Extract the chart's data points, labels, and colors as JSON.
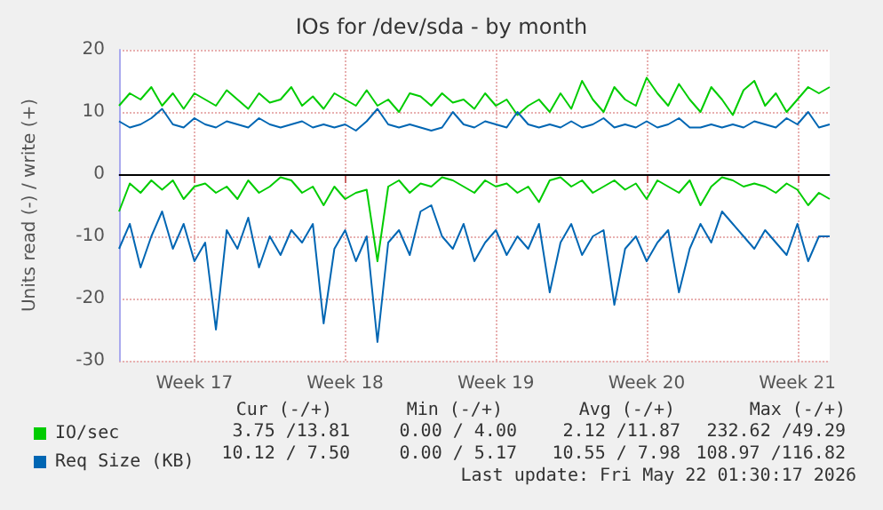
{
  "chart_data": {
    "type": "line",
    "title": "IOs for /dev/sda - by month",
    "ylabel": "Units read (-) / write (+)",
    "categories": [
      null,
      null,
      null,
      null,
      null,
      null,
      null,
      "Week 17",
      null,
      null,
      null,
      null,
      null,
      null,
      null,
      null,
      null,
      null,
      null,
      null,
      null,
      "Week 18",
      null,
      null,
      null,
      null,
      null,
      null,
      null,
      null,
      null,
      null,
      null,
      null,
      null,
      "Week 19",
      null,
      null,
      null,
      null,
      null,
      null,
      null,
      null,
      null,
      null,
      null,
      null,
      null,
      "Week 20",
      null,
      null,
      null,
      null,
      null,
      null,
      null,
      null,
      null,
      null,
      null,
      null,
      null,
      "Week 21",
      null,
      null,
      null
    ],
    "ylim": [
      -30,
      20
    ],
    "yticks": [
      -30,
      -20,
      -10,
      0,
      10,
      20
    ],
    "grid": true,
    "legend": "bottom",
    "marker": "none",
    "ref_lines": [
      {
        "axis": "y",
        "value": 0,
        "color": "#000000"
      }
    ],
    "series": [
      {
        "name": "IO/sec",
        "color": "#00cc00",
        "values": [
          11,
          13,
          12,
          14,
          11,
          13,
          10.5,
          13,
          12,
          11,
          13.5,
          12,
          10.5,
          13,
          11.5,
          12,
          14,
          11,
          12.5,
          10.5,
          13,
          12,
          11,
          13.5,
          11,
          12,
          10,
          13,
          12.5,
          11,
          13,
          11.5,
          12,
          10.5,
          13,
          11,
          12,
          9.5,
          11,
          12,
          10,
          13,
          10.5,
          15,
          12,
          10,
          14,
          12,
          11,
          15.5,
          13,
          11,
          14.5,
          12,
          10,
          14,
          12,
          9.5,
          13.5,
          15,
          11,
          13,
          10,
          12,
          14,
          13,
          14
        ]
      },
      {
        "name": "Req Size (KB)",
        "color": "#0066b3",
        "values": [
          8.5,
          7.5,
          8,
          9,
          10.5,
          8,
          7.5,
          9,
          8,
          7.5,
          8.5,
          8,
          7.5,
          9,
          8,
          7.5,
          8,
          8.5,
          7.5,
          8,
          7.5,
          8,
          7,
          8.5,
          10.5,
          8,
          7.5,
          8,
          7.5,
          7,
          7.5,
          10,
          8,
          7.5,
          8.5,
          8,
          7.5,
          10,
          8,
          7.5,
          8,
          7.5,
          8.5,
          7.5,
          8,
          9,
          7.5,
          8,
          7.5,
          8.5,
          7.5,
          8,
          9,
          7.5,
          7.5,
          8,
          7.5,
          8,
          7.5,
          8.5,
          8,
          7.5,
          9,
          8,
          10,
          7.5,
          8
        ]
      },
      {
        "color": "#00cc00",
        "values": [
          -6,
          -1.5,
          -3,
          -1,
          -2.5,
          -1,
          -4,
          -2,
          -1.5,
          -3,
          -2,
          -4,
          -1,
          -3,
          -2,
          -0.5,
          -1,
          -3,
          -2,
          -5,
          -2,
          -4,
          -3,
          -2.5,
          -14,
          -2,
          -1,
          -3,
          -1.5,
          -2,
          -0.5,
          -1,
          -2,
          -3,
          -1,
          -2,
          -1.5,
          -3,
          -2,
          -4.5,
          -1,
          -0.5,
          -2,
          -1,
          -3,
          -2,
          -1,
          -2.5,
          -1.5,
          -4,
          -1,
          -2,
          -3,
          -1,
          -5,
          -2,
          -0.5,
          -1,
          -2,
          -1.5,
          -2,
          -3,
          -1.5,
          -2.5,
          -5,
          -3,
          -4
        ]
      },
      {
        "color": "#0066b3",
        "values": [
          -12,
          -8,
          -15,
          -10,
          -6,
          -12,
          -8,
          -14,
          -11,
          -25,
          -9,
          -12,
          -7,
          -15,
          -10,
          -13,
          -9,
          -11,
          -8,
          -24,
          -12,
          -9,
          -14,
          -10,
          -27,
          -11,
          -9,
          -13,
          -6,
          -5,
          -10,
          -12,
          -8,
          -14,
          -11,
          -9,
          -13,
          -10,
          -12,
          -8,
          -19,
          -11,
          -8,
          -13,
          -10,
          -9,
          -21,
          -12,
          -10,
          -14,
          -11,
          -9,
          -19,
          -12,
          -8,
          -11,
          -6,
          -8,
          -10,
          -12,
          -9,
          -11,
          -13,
          -8,
          -14,
          -10,
          -10
        ]
      }
    ],
    "annotations": [
      "Cur (-/+)",
      "Min (-/+)",
      "Avg (-/+)",
      "Max (-/+)",
      "3.75 /13.81",
      "0.00 / 4.00",
      "2.12 /11.87",
      "232.62 /49.29",
      "10.12 / 7.50",
      "0.00 / 5.17",
      "10.55 / 7.98",
      "108.97 /116.82",
      "Last update: Fri May 22 01:30:17 2026"
    ]
  }
}
